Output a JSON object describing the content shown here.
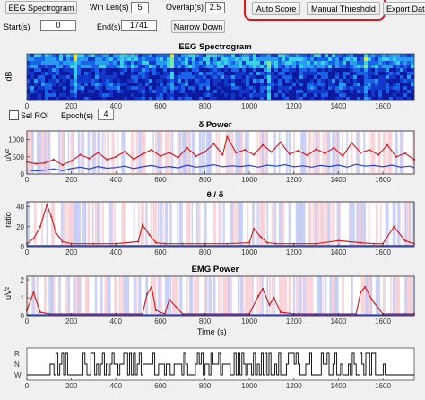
{
  "toolbar": {
    "eeg_spectrogram_button": "EEG Spectrogram",
    "win_len_label": "Win Len(s)",
    "win_len_value": "5",
    "overlap_label": "Overlap(s)",
    "overlap_value": "2.5",
    "auto_score_button": "Auto Score",
    "manual_threshold_button": "Manual Threshold",
    "export_data_button": "Export Data",
    "start_label": "Start(s)",
    "start_value": "0",
    "end_label": "End(s)",
    "end_value": "1741",
    "narrow_down_button": "Narrow Down"
  },
  "controls": {
    "sel_roi_label": "Sel ROI",
    "epoch_label": "Epoch(s)",
    "epoch_value": "4"
  },
  "colors": {
    "highlight": "#e0161a",
    "red_trace": "#d42020",
    "blue_trace": "#1f3fd6",
    "band_pink": "#f7c6cc",
    "band_blue": "#b9c3f2"
  },
  "chart_data": [
    {
      "type": "heatmap",
      "title": "EEG Spectrogram",
      "ylabel": "dB",
      "xlabel": "",
      "xlim": [
        0,
        1741
      ],
      "x_ticks": [
        "0",
        "200",
        "400",
        "600",
        "800",
        "1000",
        "1200",
        "1400",
        "1600"
      ]
    },
    {
      "type": "line",
      "title": "δ Power",
      "ylabel": "uV²",
      "xlabel": "",
      "xlim": [
        0,
        1741
      ],
      "ylim": [
        0,
        1250
      ],
      "y_ticks": [
        "0",
        "500",
        "1000"
      ],
      "x_ticks": [
        "0",
        "200",
        "400",
        "600",
        "800",
        "1000",
        "1200",
        "1400",
        "1600"
      ],
      "series": [
        {
          "color": "red",
          "x": [
            0,
            40,
            80,
            120,
            160,
            200,
            240,
            280,
            320,
            360,
            400,
            440,
            480,
            520,
            560,
            600,
            640,
            680,
            720,
            760,
            800,
            840,
            880,
            900,
            940,
            980,
            1020,
            1060,
            1100,
            1140,
            1180,
            1220,
            1260,
            1300,
            1340,
            1380,
            1420,
            1460,
            1500,
            1540,
            1580,
            1620,
            1660,
            1700,
            1741
          ],
          "y": [
            350,
            300,
            320,
            420,
            260,
            380,
            560,
            450,
            620,
            420,
            500,
            650,
            430,
            580,
            700,
            520,
            620,
            480,
            760,
            520,
            640,
            880,
            560,
            1080,
            620,
            700,
            560,
            840,
            640,
            920,
            580,
            680,
            540,
            720,
            600,
            760,
            520,
            900,
            620,
            700,
            560,
            840,
            500,
            600,
            420
          ]
        },
        {
          "color": "blue",
          "x": [
            0,
            40,
            80,
            120,
            160,
            200,
            240,
            280,
            320,
            360,
            400,
            440,
            480,
            520,
            560,
            600,
            640,
            680,
            720,
            760,
            800,
            840,
            880,
            920,
            960,
            1000,
            1040,
            1080,
            1120,
            1160,
            1200,
            1240,
            1280,
            1320,
            1360,
            1400,
            1440,
            1480,
            1520,
            1560,
            1600,
            1640,
            1680,
            1720,
            1741
          ],
          "y": [
            120,
            90,
            110,
            150,
            100,
            160,
            200,
            150,
            220,
            170,
            190,
            230,
            160,
            210,
            250,
            190,
            220,
            180,
            260,
            200,
            230,
            270,
            210,
            240,
            220,
            250,
            200,
            260,
            230,
            270,
            210,
            240,
            200,
            250,
            220,
            260,
            200,
            280,
            230,
            250,
            210,
            260,
            200,
            230,
            180
          ]
        }
      ]
    },
    {
      "type": "line",
      "title": "θ / δ",
      "ylabel": "ratio",
      "xlabel": "",
      "xlim": [
        0,
        1741
      ],
      "ylim": [
        0,
        45
      ],
      "y_ticks": [
        "0",
        "20",
        "40"
      ],
      "x_ticks": [
        "0",
        "200",
        "400",
        "600",
        "800",
        "1000",
        "1200",
        "1400",
        "1600"
      ],
      "series": [
        {
          "color": "red",
          "x": [
            0,
            30,
            60,
            90,
            110,
            130,
            160,
            200,
            300,
            400,
            500,
            520,
            550,
            580,
            620,
            700,
            800,
            900,
            1000,
            1020,
            1050,
            1080,
            1120,
            1200,
            1300,
            1400,
            1500,
            1560,
            1600,
            1650,
            1700,
            1741
          ],
          "y": [
            3,
            8,
            20,
            42,
            30,
            14,
            5,
            3,
            3,
            3,
            5,
            22,
            12,
            4,
            3,
            3,
            3,
            3,
            4,
            18,
            10,
            4,
            3,
            3,
            3,
            6,
            4,
            3,
            3,
            20,
            6,
            3
          ]
        },
        {
          "color": "blue",
          "x": [
            0,
            200,
            400,
            600,
            800,
            1000,
            1200,
            1400,
            1600,
            1741
          ],
          "y": [
            1,
            1,
            1,
            1,
            1,
            1,
            1,
            1,
            1,
            1
          ]
        }
      ]
    },
    {
      "type": "line",
      "title": "EMG Power",
      "ylabel": "uV²",
      "xlabel": "Time (s)",
      "xlim": [
        0,
        1741
      ],
      "ylim": [
        0,
        2.2
      ],
      "y_ticks": [
        "0",
        "1",
        "2"
      ],
      "x_ticks": [
        "0",
        "200",
        "400",
        "600",
        "800",
        "1000",
        "1200",
        "1400",
        "1600"
      ],
      "series": [
        {
          "color": "red",
          "x": [
            0,
            30,
            60,
            100,
            200,
            400,
            520,
            540,
            560,
            580,
            620,
            640,
            700,
            800,
            1000,
            1040,
            1060,
            1090,
            1110,
            1140,
            1200,
            1300,
            1480,
            1500,
            1520,
            1550,
            1600,
            1700,
            1741
          ],
          "y": [
            0.3,
            1.3,
            0.2,
            0.1,
            0.1,
            0.1,
            0.1,
            1.2,
            1.6,
            0.3,
            0.1,
            0.9,
            0.1,
            0.1,
            0.1,
            1.1,
            1.5,
            0.6,
            1.0,
            0.2,
            0.1,
            0.1,
            0.1,
            1.3,
            1.6,
            0.9,
            0.1,
            0.1,
            0.1
          ]
        },
        {
          "color": "blue",
          "x": [
            0,
            200,
            400,
            600,
            800,
            1000,
            1200,
            1400,
            1600,
            1741
          ],
          "y": [
            0.05,
            0.05,
            0.05,
            0.05,
            0.05,
            0.05,
            0.05,
            0.05,
            0.05,
            0.05
          ]
        }
      ]
    },
    {
      "type": "line",
      "title": "",
      "ylabel": "",
      "xlabel": "",
      "xlim": [
        0,
        1741
      ],
      "y_ticks": [
        "R",
        "N",
        "W"
      ],
      "x_ticks": [
        "0",
        "200",
        "400",
        "600",
        "800",
        "1000",
        "1200",
        "1400",
        "1600"
      ]
    }
  ]
}
